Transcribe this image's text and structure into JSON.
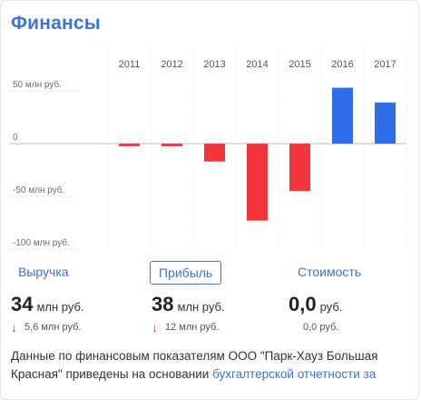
{
  "title": "Финансы",
  "tabs": [
    "Выручка",
    "Прибыль",
    "Стоимость"
  ],
  "active_tab": "Прибыль",
  "metrics": [
    {
      "value": "34",
      "unit": "млн руб.",
      "delta": "5,6 млн руб.",
      "trend": "down"
    },
    {
      "value": "38",
      "unit": "млн руб.",
      "delta": "12 млн руб.",
      "trend": "down"
    },
    {
      "value": "0,0",
      "unit": "руб.",
      "delta": "0,0 руб.",
      "trend": "none"
    }
  ],
  "footnote": {
    "text": "Данные по финансовым показателям ООО \"Парк-Хауз Большая Красная\" приведены на основании ",
    "link": "бухгалтерской отчетности за"
  },
  "colors": {
    "accent": "#3d73df",
    "negative": "#f4363c",
    "positive": "#2f6ee8"
  },
  "chart_data": {
    "type": "bar",
    "categories": [
      "2011",
      "2012",
      "2013",
      "2014",
      "2015",
      "2016",
      "2017"
    ],
    "values": [
      -2.5,
      -2.5,
      -17,
      -73,
      -45,
      53,
      39
    ],
    "ylabel": "",
    "ylim": [
      -100,
      50
    ],
    "y_ticks": [
      50,
      0,
      -50,
      -100
    ],
    "y_tick_labels": [
      "50 млн руб.",
      "0",
      "-50 млн руб.",
      "-100 млн руб."
    ],
    "grid": true,
    "legend": "none"
  }
}
